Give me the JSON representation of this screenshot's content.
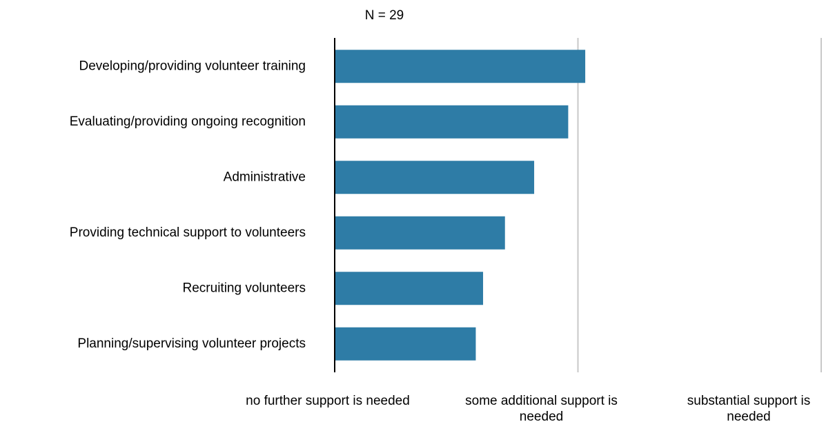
{
  "chart_data": {
    "type": "hbar",
    "subtitle": "N = 29",
    "categories": [
      "Developing/providing volunteer training",
      "Evaluating/providing ongoing recognition",
      "Administrative",
      "Providing technical support to volunteers",
      "Recruiting volunteers",
      "Planning/supervising volunteer projects"
    ],
    "values": [
      1.03,
      0.96,
      0.82,
      0.7,
      0.61,
      0.58
    ],
    "color": "#2e7ca6",
    "xlim": [
      0,
      2
    ],
    "xticks": [
      {
        "value": 0,
        "label": "no further support is needed"
      },
      {
        "value": 1,
        "label": "some additional support is needed"
      },
      {
        "value": 2,
        "label": "substantial support is needed"
      }
    ],
    "grid": true
  }
}
